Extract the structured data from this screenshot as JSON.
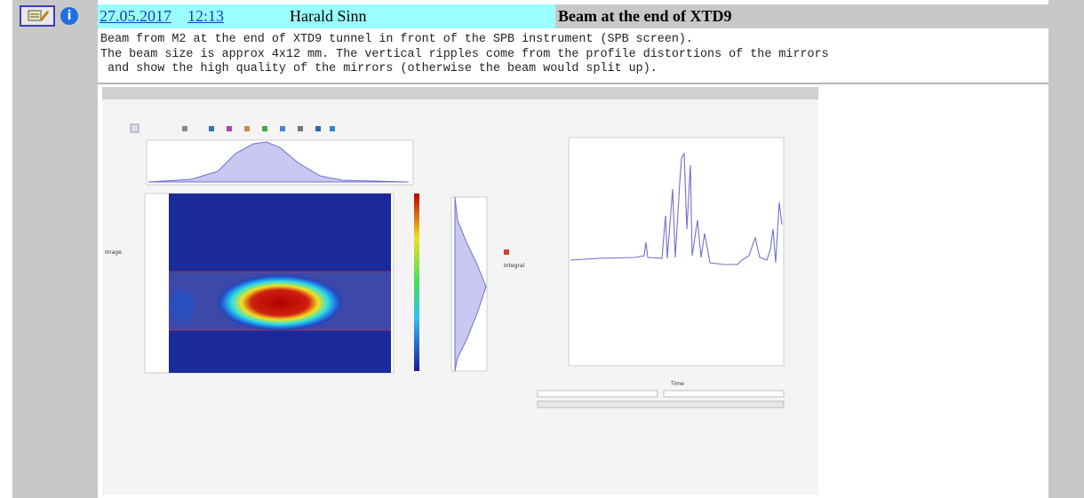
{
  "header": {
    "date": "27.05.2017",
    "time": "12:13",
    "author": "Harald Sinn",
    "title": "Beam at the end of XTD9"
  },
  "body": {
    "lines": [
      "Beam from M2 at the end of XTD9 tunnel in front of the SPB instrument (SPB screen).",
      "The beam size is approx 4x12 mm. The vertical ripples come from the profile distortions of the mirrors",
      " and show the high quality of the mirrors (otherwise the beam would split up)."
    ]
  },
  "image": {
    "labels": {
      "image_axis": "Image",
      "integral_axis": "Integral",
      "time_axis": "Time"
    }
  }
}
